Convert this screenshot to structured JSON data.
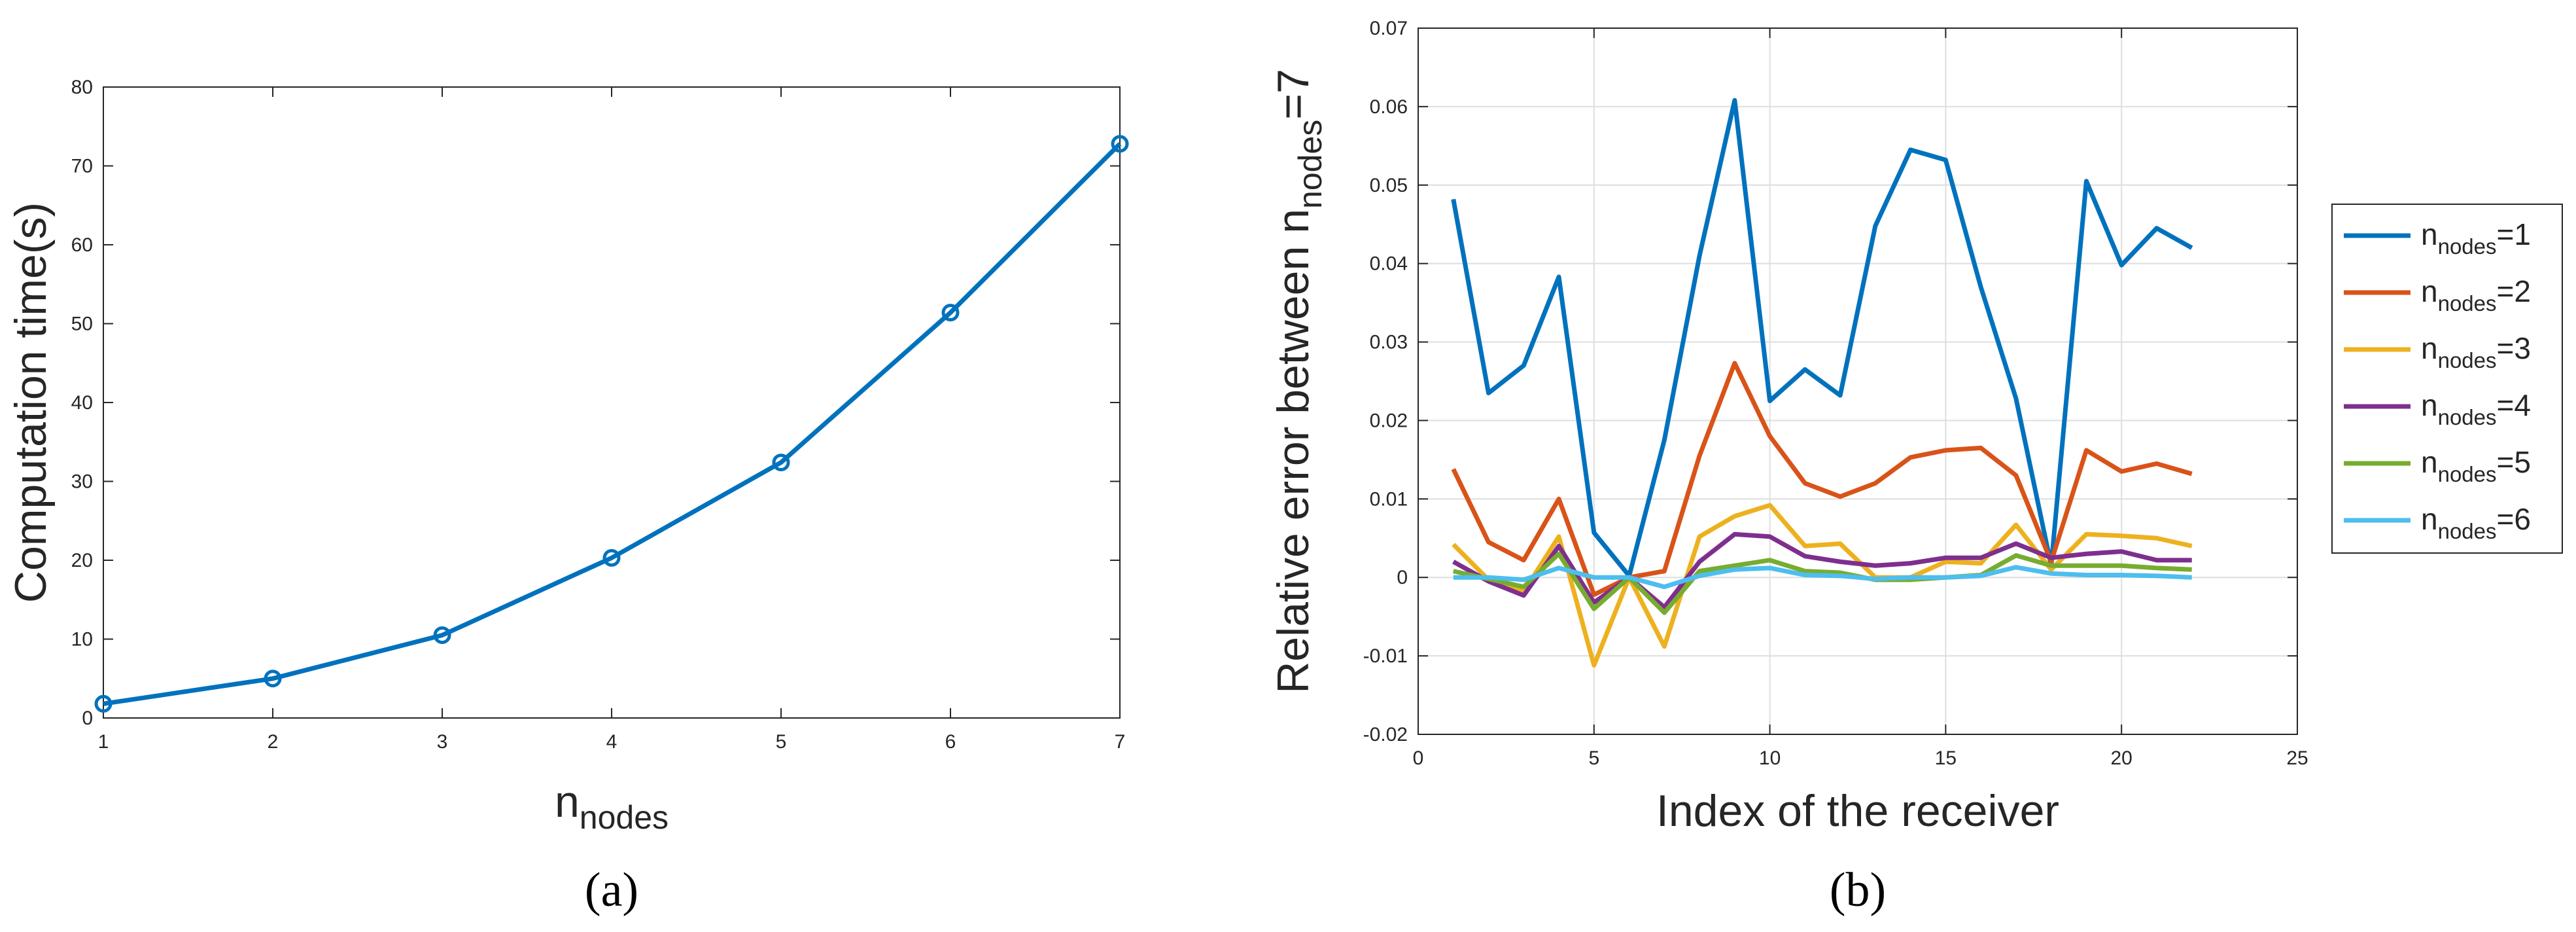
{
  "chart_data": [
    {
      "type": "line",
      "panel_label": "(a)",
      "panel_letter": "a",
      "ylabel": "Computation time(s)",
      "xlabel": {
        "base": "n",
        "sub": "nodes"
      },
      "xlim": [
        1,
        7
      ],
      "ylim": [
        0,
        80
      ],
      "xticks": [
        1,
        2,
        3,
        4,
        5,
        6,
        7
      ],
      "yticks": [
        0,
        10,
        20,
        30,
        40,
        50,
        60,
        70,
        80
      ],
      "grid": false,
      "series": [
        {
          "name": "computation time",
          "color": "#0072BD",
          "marker": "circle",
          "x": [
            1,
            2,
            3,
            4,
            5,
            6,
            7
          ],
          "values": [
            1.8,
            5.0,
            10.5,
            20.3,
            32.4,
            51.4,
            72.8
          ]
        }
      ]
    },
    {
      "type": "line",
      "panel_label": "(b)",
      "panel_letter": "b",
      "ylabel": {
        "prefix": "Relative error between n",
        "sub": "nodes",
        "suffix": "=7"
      },
      "xlabel": "Index of the receiver",
      "xlim": [
        0,
        25
      ],
      "ylim": [
        -0.02,
        0.07
      ],
      "xticks": [
        0,
        5,
        10,
        15,
        20,
        25
      ],
      "yticks": [
        -0.02,
        -0.01,
        0,
        0.01,
        0.02,
        0.03,
        0.04,
        0.05,
        0.06,
        0.07
      ],
      "ytick_labels": [
        "-0.02",
        "-0.01",
        "0",
        "0.01",
        "0.02",
        "0.03",
        "0.04",
        "0.05",
        "0.06",
        "0.07"
      ],
      "grid": true,
      "legend_position": "outside-right",
      "x": [
        1,
        2,
        3,
        4,
        5,
        6,
        7,
        8,
        9,
        10,
        11,
        12,
        13,
        14,
        15,
        16,
        17,
        18,
        19,
        20,
        21,
        22
      ],
      "series": [
        {
          "name": "=1",
          "color": "#0072BD",
          "values": [
            0.0482,
            0.0235,
            0.027,
            0.0383,
            0.0057,
            0.0002,
            0.0175,
            0.041,
            0.0608,
            0.0225,
            0.0265,
            0.0232,
            0.0448,
            0.0545,
            0.0532,
            0.037,
            0.0228,
            0.0015,
            0.0505,
            0.0398,
            0.0445,
            0.042
          ]
        },
        {
          "name": "=2",
          "color": "#D95319",
          "values": [
            0.0138,
            0.0045,
            0.0022,
            0.01,
            -0.0022,
            0.0,
            0.0008,
            0.0155,
            0.0273,
            0.018,
            0.012,
            0.0103,
            0.012,
            0.0153,
            0.0162,
            0.0165,
            0.013,
            0.002,
            0.0162,
            0.0135,
            0.0145,
            0.0132
          ]
        },
        {
          "name": "=3",
          "color": "#EDB120",
          "values": [
            0.0042,
            -0.0003,
            -0.0018,
            0.0052,
            -0.0112,
            0.0,
            -0.0088,
            0.0052,
            0.0078,
            0.0092,
            0.004,
            0.0043,
            0.0,
            0.0,
            0.002,
            0.0018,
            0.0067,
            0.001,
            0.0055,
            0.0053,
            0.005,
            0.004
          ]
        },
        {
          "name": "=4",
          "color": "#7E2F8E",
          "values": [
            0.002,
            -0.0005,
            -0.0023,
            0.004,
            -0.0032,
            0.0,
            -0.0038,
            0.002,
            0.0055,
            0.0052,
            0.0027,
            0.002,
            0.0015,
            0.0018,
            0.0025,
            0.0025,
            0.0043,
            0.0025,
            0.003,
            0.0033,
            0.0022,
            0.0022
          ]
        },
        {
          "name": "=5",
          "color": "#77AC30",
          "values": [
            0.0008,
            -0.0002,
            -0.0012,
            0.003,
            -0.004,
            0.0,
            -0.0045,
            0.0008,
            0.0015,
            0.0022,
            0.0008,
            0.0006,
            -0.0003,
            -0.0003,
            0.0,
            0.0003,
            0.0028,
            0.0015,
            0.0015,
            0.0015,
            0.0012,
            0.001
          ]
        },
        {
          "name": "=6",
          "color": "#4DBEEE",
          "values": [
            0.0,
            0.0,
            -0.0003,
            0.0012,
            0.0,
            0.0,
            -0.0012,
            0.0002,
            0.001,
            0.0012,
            0.0003,
            0.0002,
            -0.0002,
            0.0,
            0.0,
            0.0002,
            0.0013,
            0.0005,
            0.0003,
            0.0003,
            0.0002,
            0.0
          ]
        }
      ],
      "legend_base": "n",
      "legend_sub": "nodes"
    }
  ]
}
